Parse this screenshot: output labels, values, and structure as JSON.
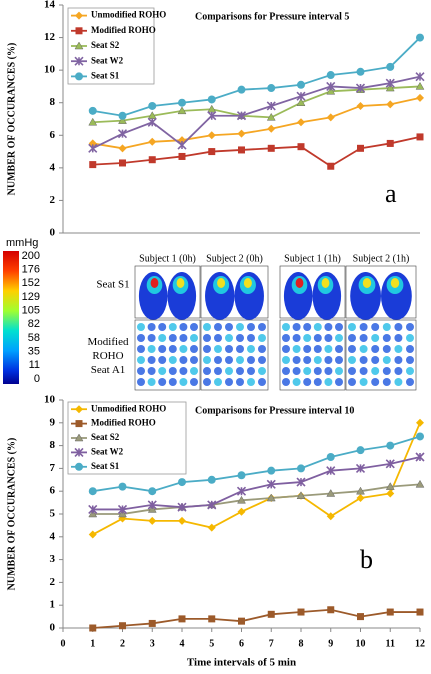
{
  "chart_data": [
    {
      "type": "line",
      "title": "Comparisons for Pressure interval 5",
      "panel_label": "a",
      "y_label": "NUMBER OF OCCURANCES (%)",
      "legend": "upper left",
      "grid": false,
      "x": [
        1,
        2,
        3,
        4,
        5,
        6,
        7,
        8,
        9,
        10,
        11,
        12
      ],
      "xlim": [
        0,
        12
      ],
      "ylim": [
        0,
        14
      ],
      "yticks": [
        0,
        2,
        4,
        6,
        8,
        10,
        12,
        14
      ],
      "series": [
        {
          "name": "Unmodified ROHO",
          "color": "#f5a623",
          "marker": "diamond",
          "values": [
            5.5,
            5.2,
            5.6,
            5.7,
            6.0,
            6.1,
            6.4,
            6.8,
            7.1,
            7.8,
            7.9,
            8.3
          ]
        },
        {
          "name": "Modified ROHO",
          "color": "#c0392b",
          "marker": "square",
          "values": [
            4.2,
            4.3,
            4.5,
            4.7,
            5.0,
            5.1,
            5.2,
            5.3,
            4.1,
            5.2,
            5.5,
            5.9
          ]
        },
        {
          "name": "Seat S2",
          "color": "#9bbb59",
          "marker": "triangle",
          "values": [
            6.8,
            6.9,
            7.2,
            7.5,
            7.6,
            7.2,
            7.1,
            8.0,
            8.7,
            8.8,
            8.9,
            9.0
          ]
        },
        {
          "name": "Seat W2",
          "color": "#8064a2",
          "marker": "star",
          "values": [
            5.2,
            6.1,
            6.8,
            5.4,
            7.2,
            7.2,
            7.8,
            8.4,
            9.0,
            8.9,
            9.2,
            9.6
          ]
        },
        {
          "name": "Seat S1",
          "color": "#4bacc6",
          "marker": "circle",
          "values": [
            7.5,
            7.2,
            7.8,
            8.0,
            8.2,
            8.8,
            8.9,
            9.1,
            9.7,
            9.9,
            10.2,
            12.0
          ]
        }
      ]
    },
    {
      "type": "line",
      "title": "Comparisons for Pressure interval 10",
      "panel_label": "b",
      "y_label": "NUMBER OF OCCURANCES (%)",
      "x_label": "Time intervals of 5 min",
      "legend": "upper left",
      "grid": false,
      "x": [
        1,
        2,
        3,
        4,
        5,
        6,
        7,
        8,
        9,
        10,
        11,
        12
      ],
      "xlim": [
        0,
        12
      ],
      "xticks": [
        0,
        1,
        2,
        3,
        4,
        5,
        6,
        7,
        8,
        9,
        10,
        11,
        12
      ],
      "ylim": [
        0,
        10
      ],
      "yticks": [
        0,
        1,
        2,
        3,
        4,
        5,
        6,
        7,
        8,
        9,
        10
      ],
      "series": [
        {
          "name": "Unmodified ROHO",
          "color": "#f5b800",
          "marker": "diamond",
          "values": [
            4.1,
            4.8,
            4.7,
            4.7,
            4.4,
            5.1,
            5.7,
            5.8,
            4.9,
            5.7,
            5.9,
            9.0
          ]
        },
        {
          "name": "Modified ROHO",
          "color": "#9c5a2a",
          "marker": "square",
          "values": [
            0.0,
            0.1,
            0.2,
            0.4,
            0.4,
            0.3,
            0.6,
            0.7,
            0.8,
            0.5,
            0.7,
            0.7
          ]
        },
        {
          "name": "Seat S2",
          "color": "#9a9a7a",
          "marker": "triangle",
          "values": [
            5.0,
            5.0,
            5.2,
            5.3,
            5.4,
            5.6,
            5.7,
            5.8,
            5.9,
            6.0,
            6.2,
            6.3
          ]
        },
        {
          "name": "Seat W2",
          "color": "#7f5fa0",
          "marker": "star",
          "values": [
            5.2,
            5.2,
            5.4,
            5.3,
            5.4,
            6.0,
            6.3,
            6.4,
            6.9,
            7.0,
            7.2,
            7.5
          ]
        },
        {
          "name": "Seat S1",
          "color": "#4bacc6",
          "marker": "circle",
          "values": [
            6.0,
            6.2,
            6.0,
            6.4,
            6.5,
            6.7,
            6.9,
            7.0,
            7.5,
            7.8,
            8.0,
            8.4
          ]
        }
      ]
    }
  ],
  "panel": {
    "colorbar": {
      "unit": "mmHg",
      "labels": [
        200,
        176,
        152,
        129,
        105,
        82,
        58,
        35,
        11,
        0
      ]
    },
    "rows": [
      "Seat S1",
      "Modified ROHO Seat A1"
    ],
    "columns": [
      "Subject 1 (0h)",
      "Subject 2 (0h)",
      "Subject 1 (1h)",
      "Subject 2 (1h)"
    ]
  }
}
